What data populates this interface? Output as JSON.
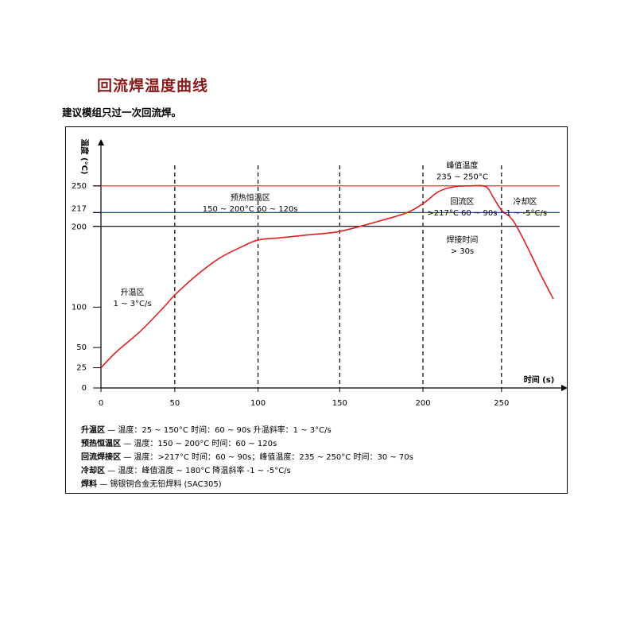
{
  "page": {
    "title": "回流焊温度曲线",
    "subtitle": "建议模组只过一次回流焊。"
  },
  "chart_data": {
    "type": "line",
    "title": "",
    "ylabel": "温度 (°C)",
    "xlabel": "时间 (s)",
    "xlim": [
      0,
      290
    ],
    "ylim": [
      0,
      300
    ],
    "y_ticks": [
      0,
      25,
      50,
      100,
      200,
      217,
      250
    ],
    "x_ticks": [
      0,
      50,
      100,
      150,
      200,
      250
    ],
    "phase_dividers": [
      47,
      100,
      152,
      205,
      255
    ],
    "reference_lines": [
      {
        "value": 250,
        "color": "#e02020"
      },
      {
        "value": 217,
        "color": "#2040c0"
      },
      {
        "value": 200,
        "color": "#000000"
      }
    ],
    "series": [
      {
        "color": "#e02020",
        "x": [
          0,
          10,
          25,
          40,
          47,
          60,
          75,
          90,
          100,
          115,
          130,
          150,
          165,
          180,
          195,
          205,
          215,
          225,
          235,
          245,
          250,
          255,
          262,
          270,
          280,
          288
        ],
        "y": [
          25,
          45,
          70,
          100,
          115,
          138,
          160,
          175,
          183,
          186,
          189,
          193,
          200,
          208,
          217,
          228,
          243,
          249,
          250,
          249,
          235,
          220,
          208,
          180,
          140,
          110
        ]
      }
    ],
    "annotations": [
      {
        "id": "ramp",
        "x": 20,
        "y": 115,
        "lines": [
          "升温区",
          "1 ~ 3°C/s"
        ]
      },
      {
        "id": "preheat",
        "x": 95,
        "y": 232,
        "lines": [
          "预热恒温区",
          "150 ~ 200°C    60 ~ 120s"
        ]
      },
      {
        "id": "peak",
        "x": 230,
        "y": 272,
        "lines": [
          "峰值温度",
          "235 ~ 250°C"
        ]
      },
      {
        "id": "reflow",
        "x": 230,
        "y": 227,
        "lines": [
          "回流区",
          ">217°C  60 ~ 90s"
        ]
      },
      {
        "id": "solder",
        "x": 230,
        "y": 180,
        "lines": [
          "焊接时间",
          "> 30s"
        ]
      },
      {
        "id": "cooling",
        "x": 270,
        "y": 227,
        "lines": [
          "冷却区",
          "-1 ~ -5°C/s"
        ]
      }
    ]
  },
  "legend": [
    {
      "term": "升温区",
      "text": "— 温度：25 ~ 150°C  时间：60 ~ 90s  升温斜率：1 ~ 3°C/s"
    },
    {
      "term": "预热恒温区",
      "text": "— 温度：150 ~ 200°C  时间：60 ~ 120s"
    },
    {
      "term": "回流焊接区",
      "text": "— 温度：>217°C  时间：60 ~ 90s；峰值温度：235 ~ 250°C  时间：30 ~ 70s"
    },
    {
      "term": "冷却区",
      "text": "— 温度：峰值温度 ~ 180°C  降温斜率 -1 ~ -5°C/s"
    },
    {
      "term": "焊料",
      "text": "— 锡银铜合金无铅焊料 (SAC305)"
    }
  ]
}
